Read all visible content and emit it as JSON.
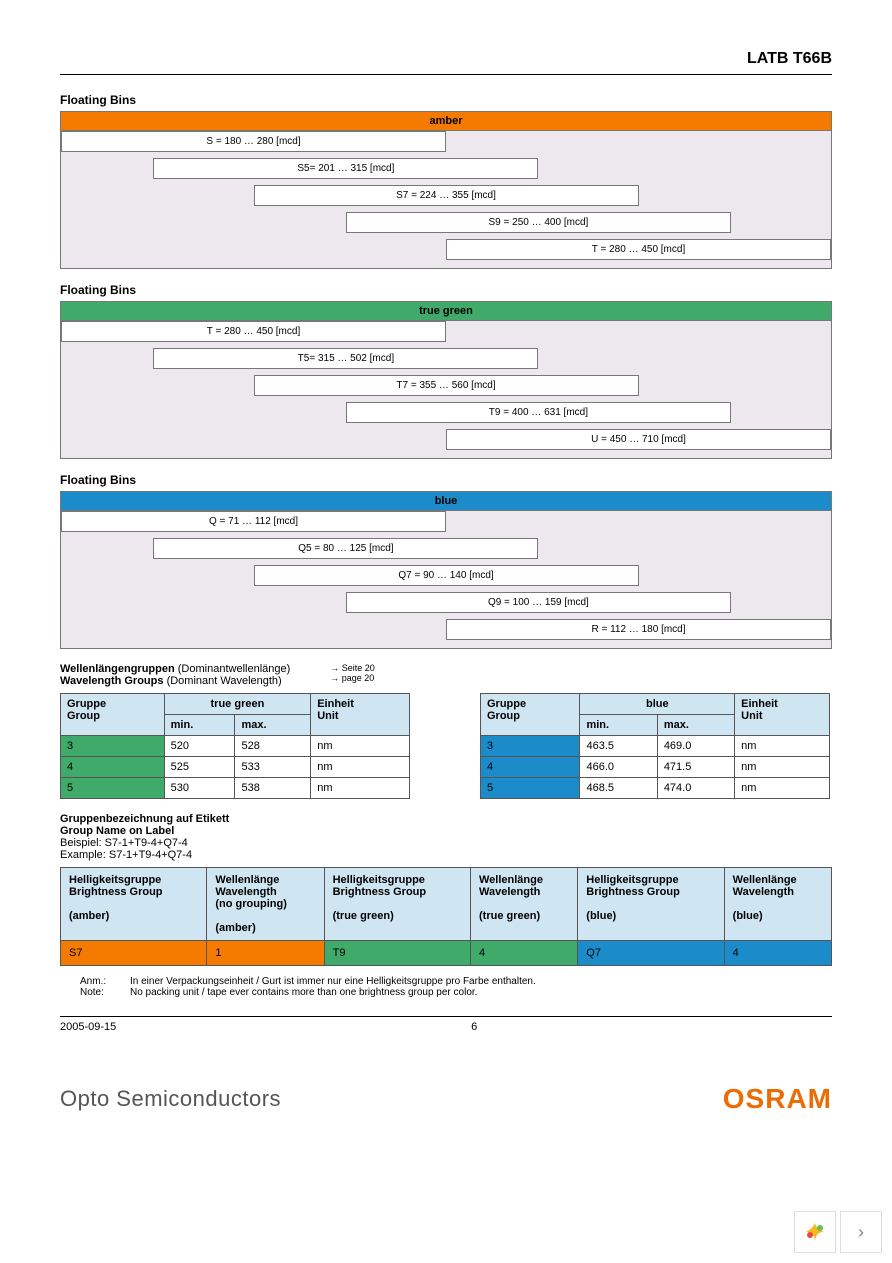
{
  "page": {
    "title": "LATB T66B",
    "footer_date": "2005-09-15",
    "footer_page": "6"
  },
  "bins": {
    "section_title": "Floating Bins",
    "blocks": [
      {
        "header": "amber",
        "header_bg": "#f47a00",
        "header_fg": "#000000",
        "rows": [
          {
            "label": "S = 180 … 280 [mcd]",
            "left_pct": 0,
            "width_pct": 50
          },
          {
            "label": "S5= 201 … 315 [mcd]",
            "left_pct": 12,
            "width_pct": 50
          },
          {
            "label": "S7 = 224 … 355 [mcd]",
            "left_pct": 25,
            "width_pct": 50
          },
          {
            "label": "S9 = 250 … 400 [mcd]",
            "left_pct": 37,
            "width_pct": 50
          },
          {
            "label": "T = 280 … 450 [mcd]",
            "left_pct": 50,
            "width_pct": 50
          }
        ]
      },
      {
        "header": "true green",
        "header_bg": "#3faa6a",
        "header_fg": "#000000",
        "rows": [
          {
            "label": "T = 280 … 450 [mcd]",
            "left_pct": 0,
            "width_pct": 50
          },
          {
            "label": "T5= 315 … 502 [mcd]",
            "left_pct": 12,
            "width_pct": 50
          },
          {
            "label": "T7 = 355 … 560 [mcd]",
            "left_pct": 25,
            "width_pct": 50
          },
          {
            "label": "T9 = 400 … 631 [mcd]",
            "left_pct": 37,
            "width_pct": 50
          },
          {
            "label": "U = 450 … 710 [mcd]",
            "left_pct": 50,
            "width_pct": 50
          }
        ]
      },
      {
        "header": "blue",
        "header_bg": "#1b8bca",
        "header_fg": "#000000",
        "rows": [
          {
            "label": "Q = 71 … 112 [mcd]",
            "left_pct": 0,
            "width_pct": 50
          },
          {
            "label": "Q5 = 80 … 125 [mcd]",
            "left_pct": 12,
            "width_pct": 50
          },
          {
            "label": "Q7 = 90 … 140 [mcd]",
            "left_pct": 25,
            "width_pct": 50
          },
          {
            "label": "Q9 = 100 … 159 [mcd]",
            "left_pct": 37,
            "width_pct": 50
          },
          {
            "label": "R = 112 … 180 [mcd]",
            "left_pct": 50,
            "width_pct": 50
          }
        ]
      }
    ]
  },
  "wavelength": {
    "intro_de": "Wellenlängengruppen",
    "intro_de_paren": "(Dominantwellenlänge)",
    "intro_en": "Wavelength Groups",
    "intro_en_paren": "(Dominant Wavelength)",
    "note_ref_de": "→ Seite 20",
    "note_ref_en": "→ page 20",
    "col_group_de": "Gruppe",
    "col_group_en": "Group",
    "col_min": "min.",
    "col_max": "max.",
    "col_unit_de": "Einheit",
    "col_unit_en": "Unit",
    "tables": [
      {
        "color_label": "true green",
        "row_bg": "#3faa6a",
        "rows": [
          {
            "g": "3",
            "min": "520",
            "max": "528",
            "unit": "nm"
          },
          {
            "g": "4",
            "min": "525",
            "max": "533",
            "unit": "nm"
          },
          {
            "g": "5",
            "min": "530",
            "max": "538",
            "unit": "nm"
          }
        ]
      },
      {
        "color_label": "blue",
        "row_bg": "#1b8bca",
        "rows": [
          {
            "g": "3",
            "min": "463.5",
            "max": "469.0",
            "unit": "nm"
          },
          {
            "g": "4",
            "min": "466.0",
            "max": "471.5",
            "unit": "nm"
          },
          {
            "g": "5",
            "min": "468.5",
            "max": "474.0",
            "unit": "nm"
          }
        ]
      }
    ]
  },
  "group_label": {
    "title_de": "Gruppenbezeichnung auf Etikett",
    "title_en": "Group Name on Label",
    "example_de": "Beispiel: S7-1+T9-4+Q7-4",
    "example_en": "Example: S7-1+T9-4+Q7-4",
    "cols": [
      {
        "de": "Helligkeitsgruppe",
        "en": "Brightness Group",
        "note_de": "",
        "note_en": "",
        "suffix": "(amber)"
      },
      {
        "de": "Wellenlänge",
        "en": "Wavelength",
        "note_de": "(no grouping)",
        "note_en": "",
        "suffix": "(amber)"
      },
      {
        "de": "Helligkeitsgruppe",
        "en": "Brightness Group",
        "note_de": "",
        "note_en": "",
        "suffix": "(true green)"
      },
      {
        "de": "Wellenlänge",
        "en": "Wavelength",
        "note_de": "",
        "note_en": "",
        "suffix": "(true green)"
      },
      {
        "de": "Helligkeitsgruppe",
        "en": "Brightness Group",
        "note_de": "",
        "note_en": "",
        "suffix": "(blue)"
      },
      {
        "de": "Wellenlänge",
        "en": "Wavelength",
        "note_de": "",
        "note_en": "",
        "suffix": "(blue)"
      }
    ],
    "data_row": [
      {
        "val": "S7",
        "bg": "#f47a00"
      },
      {
        "val": "1",
        "bg": "#f47a00"
      },
      {
        "val": "T9",
        "bg": "#3faa6a"
      },
      {
        "val": "4",
        "bg": "#3faa6a"
      },
      {
        "val": "Q7",
        "bg": "#1b8bca"
      },
      {
        "val": "4",
        "bg": "#1b8bca"
      }
    ]
  },
  "notes": {
    "label_de": "Anm.:",
    "text_de": "In einer Verpackungseinheit / Gurt ist immer nur eine Helligkeitsgruppe pro Farbe enthalten.",
    "label_en": "Note:",
    "text_en": "No packing unit / tape ever contains more than one brightness group per color."
  },
  "brand": {
    "left": "Opto Semiconductors",
    "right": "OSRAM"
  }
}
